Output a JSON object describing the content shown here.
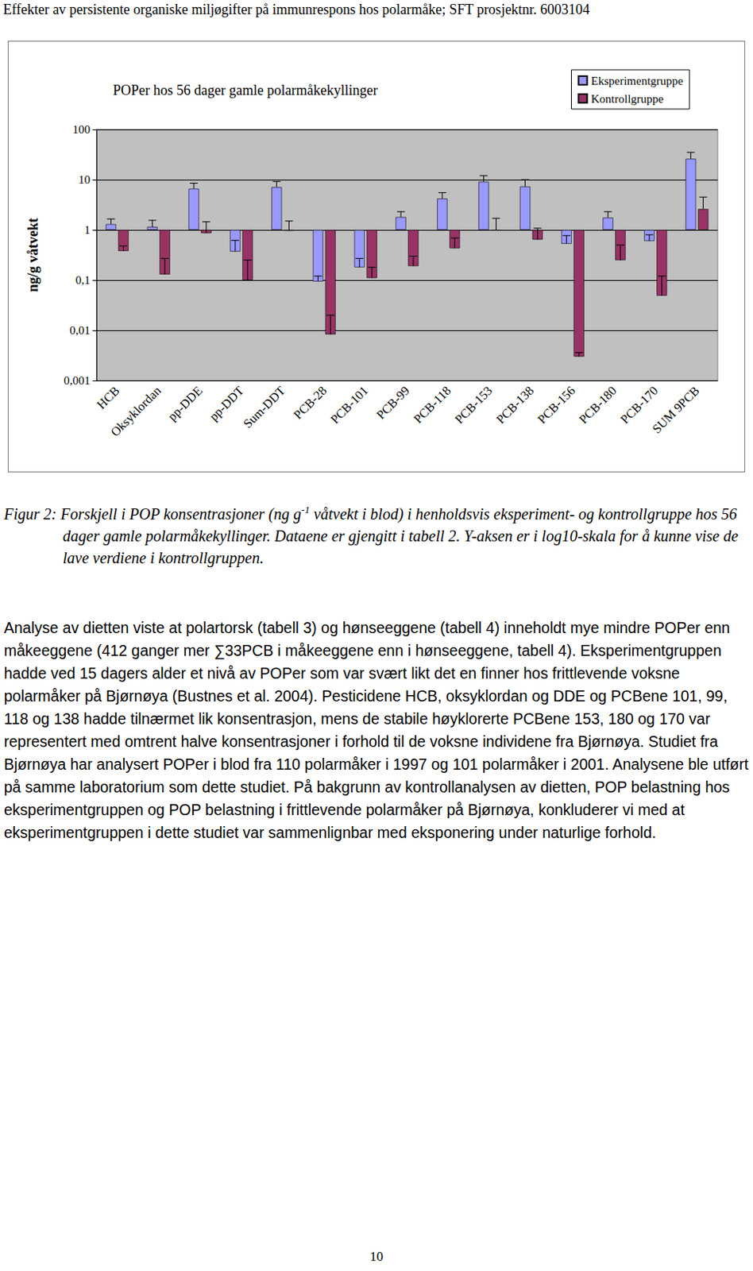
{
  "header": "Effekter av persistente organiske miljøgifter på immunrespons hos polarmåke; SFT prosjektnr. 6003104",
  "chart_data": {
    "type": "bar",
    "title": "POPer hos 56 dager gamle polarmåkekyllinger",
    "y_label": "ng/g våtvekt",
    "categories": [
      "HCB",
      "Oksyklordan",
      "pp-DDE",
      "pp-DDT",
      "Sum-DDT",
      "PCB-28",
      "PCB-101",
      "PCB-99",
      "PCB-118",
      "PCB-153",
      "PCB-138",
      "PCB-156",
      "PCB-180",
      "PCB-170",
      "SUM 9PCB"
    ],
    "series": [
      {
        "name": "Eksperimentgruppe",
        "color": "#9999ff",
        "values": [
          1.3,
          1.15,
          6.6,
          0.37,
          7.1,
          0.094,
          0.18,
          1.8,
          4.2,
          9.1,
          7.3,
          0.53,
          1.75,
          0.6,
          26
        ],
        "errors": [
          0.35,
          0.4,
          1.9,
          0.25,
          2.1,
          0.026,
          0.09,
          0.5,
          1.3,
          2.9,
          2.7,
          0.24,
          0.55,
          0.2,
          9
        ]
      },
      {
        "name": "Kontrollgruppe",
        "color": "#993366",
        "values": [
          0.38,
          0.13,
          0.86,
          0.1,
          0.96,
          0.0083,
          0.11,
          0.19,
          0.43,
          0.97,
          0.64,
          0.003,
          0.25,
          0.049,
          2.6
        ],
        "errors": [
          0.1,
          0.14,
          0.59,
          0.15,
          0.54,
          0.0117,
          0.07,
          0.11,
          0.26,
          0.73,
          0.44,
          0.0006,
          0.25,
          0.071,
          1.9
        ]
      }
    ],
    "ylim": [
      0.001,
      100
    ],
    "yticks": [
      {
        "value": 0.001,
        "label": "0,001"
      },
      {
        "value": 0.01,
        "label": "0,01"
      },
      {
        "value": 0.1,
        "label": "0,1"
      },
      1,
      10,
      100
    ],
    "log": "y",
    "grid": true,
    "legend": "top-right"
  },
  "caption": {
    "before": "Figur 2: Forskjell i POP konsentrasjoner (ng g",
    "sup": "-1",
    "after": " våtvekt i blod) i henholdsvis eksperiment- og kontrollgruppe hos 56 dager gamle polarmåkekyllinger. Dataene er gjengitt i tabell 2. Y-aksen er i log10-skala for å kunne vise de lave verdiene i kontrollgruppen."
  },
  "body": "Analyse av dietten viste at polartorsk (tabell 3) og hønseeggene (tabell 4) inneholdt mye mindre POPer enn måkeeggene (412 ganger mer ∑33PCB i måkeeggene enn i hønseeggene, tabell 4). Eksperimentgruppen hadde ved 15 dagers alder et nivå av POPer som var svært likt det en finner hos frittlevende voksne polarmåker på Bjørnøya (Bustnes et al. 2004). Pesticidene HCB, oksyklordan og DDE og PCBene 101, 99, 118 og 138 hadde tilnærmet lik konsentrasjon, mens de stabile høyklorerte PCBene 153, 180 og 170 var representert med omtrent halve konsentrasjoner i forhold til de voksne individene fra Bjørnøya. Studiet fra Bjørnøya har analysert POPer i blod fra 110 polarmåker i 1997 og 101 polarmåker i 2001. Analysene ble utført på samme laboratorium som dette studiet. På bakgrunn av kontrollanalysen av dietten, POP belastning hos eksperimentgruppen og POP belastning i frittlevende polarmåker på Bjørnøya, konkluderer vi med at eksperimentgruppen i dette studiet var sammenlignbar med eksponering under naturlige forhold.",
  "page_number": "10"
}
